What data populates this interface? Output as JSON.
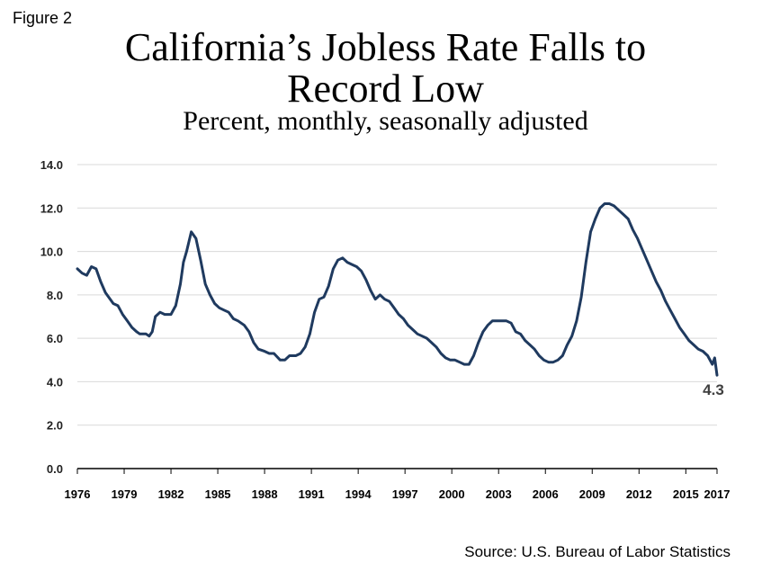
{
  "figure_label": "Figure 2",
  "title_line1": "California’s Jobless Rate Falls to",
  "title_line2": "Record Low",
  "subtitle": "Percent, monthly, seasonally adjusted",
  "source": "Source: U.S. Bureau of Labor Statistics",
  "colors": {
    "line": "#1f3a5f",
    "grid": "#d9d9d9",
    "axis": "#000000"
  },
  "chart_data": {
    "type": "line",
    "title": "California’s Jobless Rate Falls to Record Low",
    "subtitle": "Percent, monthly, seasonally adjusted",
    "xlabel": "",
    "ylabel": "",
    "xlim": [
      1976,
      2017
    ],
    "ylim": [
      0,
      14
    ],
    "grid": true,
    "legend": "none",
    "y_ticks": [
      "0.0",
      "2.0",
      "4.0",
      "6.0",
      "8.0",
      "10.0",
      "12.0",
      "14.0"
    ],
    "x_ticks": [
      "1976",
      "1979",
      "1982",
      "1985",
      "1988",
      "1991",
      "1994",
      "1997",
      "2000",
      "2003",
      "2006",
      "2009",
      "2012",
      "2015",
      "2017"
    ],
    "end_label": "4.3",
    "series": [
      {
        "x": [
          1976.0,
          1976.3,
          1976.6,
          1976.9,
          1977.2,
          1977.5,
          1977.8,
          1978.0,
          1978.3,
          1978.6,
          1978.9,
          1979.2,
          1979.5,
          1979.8,
          1980.0,
          1980.2,
          1980.4,
          1980.6,
          1980.8,
          1981.0,
          1981.3,
          1981.6,
          1981.8,
          1982.0,
          1982.3,
          1982.6,
          1982.8,
          1983.0,
          1983.3,
          1983.6,
          1983.9,
          1984.2,
          1984.5,
          1984.8,
          1985.1,
          1985.4,
          1985.7,
          1986.0,
          1986.3,
          1986.7,
          1987.0,
          1987.3,
          1987.6,
          1988.0,
          1988.3,
          1988.6,
          1989.0,
          1989.3,
          1989.6,
          1990.0,
          1990.3,
          1990.6,
          1990.9,
          1991.2,
          1991.5,
          1991.8,
          1992.1,
          1992.4,
          1992.7,
          1993.0,
          1993.3,
          1993.6,
          1993.9,
          1994.2,
          1994.5,
          1994.8,
          1995.1,
          1995.4,
          1995.7,
          1996.0,
          1996.3,
          1996.6,
          1996.9,
          1997.2,
          1997.5,
          1997.8,
          1998.1,
          1998.4,
          1998.7,
          1999.0,
          1999.3,
          1999.6,
          1999.9,
          2000.2,
          2000.5,
          2000.8,
          2001.1,
          2001.4,
          2001.7,
          2002.0,
          2002.3,
          2002.6,
          2002.9,
          2003.2,
          2003.5,
          2003.8,
          2004.1,
          2004.4,
          2004.7,
          2005.0,
          2005.3,
          2005.6,
          2005.9,
          2006.2,
          2006.5,
          2006.8,
          2007.1,
          2007.4,
          2007.7,
          2008.0,
          2008.3,
          2008.6,
          2008.9,
          2009.2,
          2009.5,
          2009.8,
          2010.1,
          2010.4,
          2010.7,
          2011.0,
          2011.3,
          2011.6,
          2011.9,
          2012.2,
          2012.5,
          2012.8,
          2013.1,
          2013.4,
          2013.7,
          2014.0,
          2014.3,
          2014.6,
          2014.9,
          2015.2,
          2015.5,
          2015.8,
          2016.1,
          2016.4,
          2016.7,
          2016.85,
          2017.0
        ],
        "values": [
          9.2,
          9.0,
          8.9,
          9.3,
          9.2,
          8.6,
          8.1,
          7.9,
          7.6,
          7.5,
          7.1,
          6.8,
          6.5,
          6.3,
          6.2,
          6.2,
          6.2,
          6.1,
          6.3,
          7.0,
          7.2,
          7.1,
          7.1,
          7.1,
          7.5,
          8.5,
          9.5,
          10.0,
          10.9,
          10.6,
          9.6,
          8.5,
          8.0,
          7.6,
          7.4,
          7.3,
          7.2,
          6.9,
          6.8,
          6.6,
          6.3,
          5.8,
          5.5,
          5.4,
          5.3,
          5.3,
          5.0,
          5.0,
          5.2,
          5.2,
          5.3,
          5.6,
          6.2,
          7.2,
          7.8,
          7.9,
          8.4,
          9.2,
          9.6,
          9.7,
          9.5,
          9.4,
          9.3,
          9.1,
          8.7,
          8.2,
          7.8,
          8.0,
          7.8,
          7.7,
          7.4,
          7.1,
          6.9,
          6.6,
          6.4,
          6.2,
          6.1,
          6.0,
          5.8,
          5.6,
          5.3,
          5.1,
          5.0,
          5.0,
          4.9,
          4.8,
          4.8,
          5.2,
          5.8,
          6.3,
          6.6,
          6.8,
          6.8,
          6.8,
          6.8,
          6.7,
          6.3,
          6.2,
          5.9,
          5.7,
          5.5,
          5.2,
          5.0,
          4.9,
          4.9,
          5.0,
          5.2,
          5.7,
          6.1,
          6.8,
          7.9,
          9.5,
          10.9,
          11.5,
          12.0,
          12.2,
          12.2,
          12.1,
          11.9,
          11.7,
          11.5,
          11.0,
          10.6,
          10.1,
          9.6,
          9.1,
          8.6,
          8.2,
          7.7,
          7.3,
          6.9,
          6.5,
          6.2,
          5.9,
          5.7,
          5.5,
          5.4,
          5.2,
          4.8,
          5.1,
          4.3
        ]
      }
    ]
  }
}
